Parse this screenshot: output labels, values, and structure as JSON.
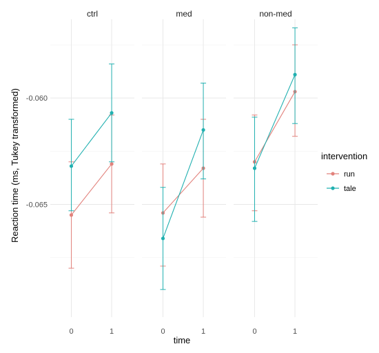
{
  "chart_data": {
    "type": "line",
    "facets": [
      "ctrl",
      "med",
      "non-med"
    ],
    "x": [
      0,
      1
    ],
    "x_ticks": [
      "0",
      "1"
    ],
    "xlabel": "time",
    "ylabel": "Reaction time (ms, Tukey transformed)",
    "y_ticks": [
      -0.06,
      -0.065
    ],
    "y_tick_labels": [
      "-0.060",
      "-0.065"
    ],
    "ylim": [
      -0.0703,
      -0.0563
    ],
    "legend": {
      "title": "intervention",
      "position": "right"
    },
    "grid": true,
    "series": [
      {
        "name": "run",
        "color": "#E2827C",
        "facets": [
          {
            "facet": "ctrl",
            "points": [
              {
                "x": 0,
                "y": -0.0655,
                "lo": -0.068,
                "hi": -0.063
              },
              {
                "x": 1,
                "y": -0.0631,
                "lo": -0.0654,
                "hi": -0.0608
              }
            ]
          },
          {
            "facet": "med",
            "points": [
              {
                "x": 0,
                "y": -0.0654,
                "lo": -0.0679,
                "hi": -0.0631
              },
              {
                "x": 1,
                "y": -0.0633,
                "lo": -0.0656,
                "hi": -0.061
              }
            ]
          },
          {
            "facet": "non-med",
            "points": [
              {
                "x": 0,
                "y": -0.063,
                "lo": -0.0653,
                "hi": -0.0608
              },
              {
                "x": 1,
                "y": -0.0597,
                "lo": -0.0618,
                "hi": -0.0575
              }
            ]
          }
        ]
      },
      {
        "name": "tale",
        "color": "#21B0B0",
        "facets": [
          {
            "facet": "ctrl",
            "points": [
              {
                "x": 0,
                "y": -0.0632,
                "lo": -0.0653,
                "hi": -0.061
              },
              {
                "x": 1,
                "y": -0.0607,
                "lo": -0.063,
                "hi": -0.0584
              }
            ]
          },
          {
            "facet": "med",
            "points": [
              {
                "x": 0,
                "y": -0.0666,
                "lo": -0.069,
                "hi": -0.0642
              },
              {
                "x": 1,
                "y": -0.0615,
                "lo": -0.0638,
                "hi": -0.0593
              }
            ]
          },
          {
            "facet": "non-med",
            "points": [
              {
                "x": 0,
                "y": -0.0633,
                "lo": -0.0658,
                "hi": -0.0609
              },
              {
                "x": 1,
                "y": -0.0589,
                "lo": -0.0612,
                "hi": -0.0567
              }
            ]
          }
        ]
      }
    ]
  }
}
